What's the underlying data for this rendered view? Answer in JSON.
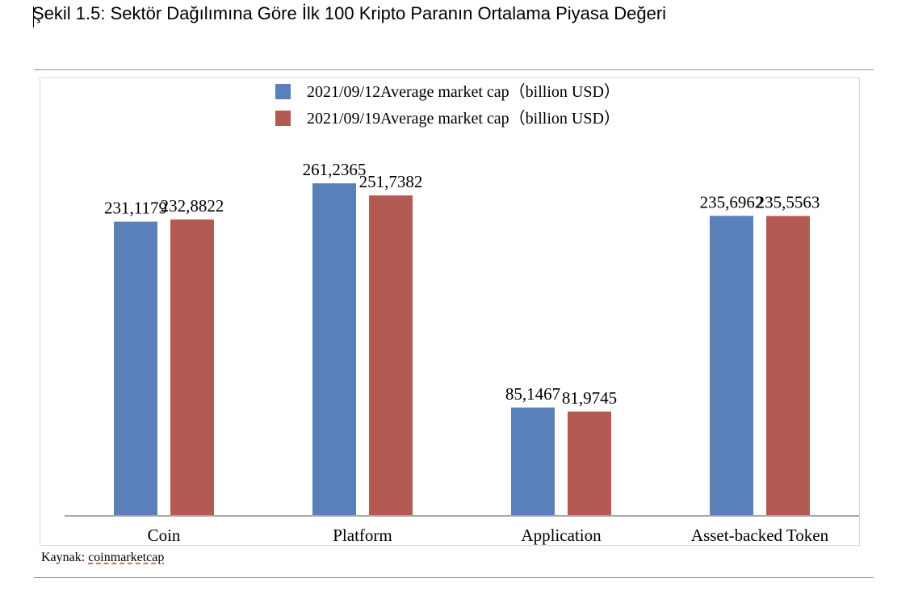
{
  "caption": "Şekil 1.5: Sektör Dağılımına Göre İlk 100 Kripto Paranın Ortalama Piyasa Değeri",
  "source": {
    "prefix": "Kaynak: ",
    "link": "coinmarketcap"
  },
  "colors": {
    "series1": "#5a80b9",
    "series2": "#b35a52",
    "axis": "#a6a6a6",
    "rule": "#8f91b8"
  },
  "chart_data": {
    "type": "bar",
    "categories": [
      "Coin",
      "Platform",
      "Application",
      "Asset-backed Token"
    ],
    "series": [
      {
        "name": "2021/09/12Average market cap（billion USD）",
        "values": [
          231.1179,
          261.2365,
          85.1467,
          235.6962
        ],
        "labels": [
          "231,1179",
          "261,2365",
          "85,1467",
          "235,6962"
        ]
      },
      {
        "name": "2021/09/19Average market cap（billion USD）",
        "values": [
          232.8822,
          251.7382,
          81.9745,
          235.5563
        ],
        "labels": [
          "232,8822",
          "251,7382",
          "81,9745",
          "235,5563"
        ]
      }
    ],
    "ylim": [
      0,
      300
    ],
    "grid": false,
    "legend": "top-center"
  }
}
